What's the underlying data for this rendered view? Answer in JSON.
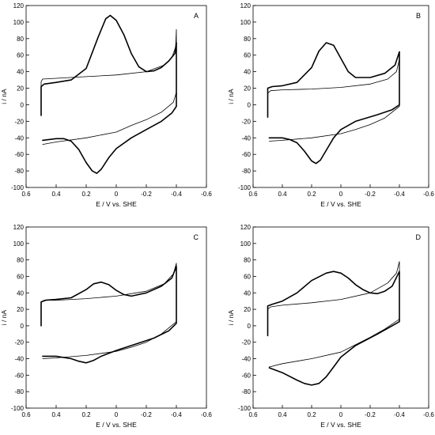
{
  "chart_data": [
    {
      "type": "line",
      "panel_label": "A",
      "xlabel": "E / V vs. SHE",
      "ylabel": "i / nA",
      "xlim": [
        0.6,
        -0.6
      ],
      "ylim": [
        -100,
        120
      ],
      "xticks": [
        "0.6",
        "0.4",
        "0.2",
        "0",
        "-0.2",
        "-0.4",
        "-0.6"
      ],
      "yticks": [
        "120",
        "100",
        "80",
        "60",
        "40",
        "20",
        "0",
        "-20",
        "-40",
        "-60",
        "-80",
        "-100"
      ],
      "series": [
        {
          "style": "thin",
          "x": [
            0.5,
            0.5,
            0.49,
            0.4,
            0.2,
            0.0,
            -0.2,
            -0.32,
            -0.37,
            -0.395,
            -0.4,
            -0.4,
            -0.4,
            -0.38,
            -0.3,
            -0.2,
            -0.1,
            0.0,
            0.2,
            0.4,
            0.49
          ],
          "y": [
            -13,
            28,
            31,
            32,
            34,
            36,
            40,
            48,
            57,
            70,
            91,
            40,
            15,
            3,
            -9,
            -18,
            -25,
            -33,
            -40,
            -45,
            -48
          ]
        },
        {
          "style": "thick",
          "x": [
            0.5,
            0.5,
            0.48,
            0.4,
            0.3,
            0.2,
            0.12,
            0.07,
            0.04,
            0.0,
            -0.05,
            -0.1,
            -0.15,
            -0.2,
            -0.25,
            -0.3,
            -0.35,
            -0.39,
            -0.4,
            -0.4,
            -0.4,
            -0.37,
            -0.3,
            -0.2,
            -0.1,
            0.0,
            0.05,
            0.1,
            0.13,
            0.16,
            0.2,
            0.25,
            0.3,
            0.35,
            0.4,
            0.49
          ],
          "y": [
            -13,
            22,
            25,
            27,
            30,
            44,
            82,
            104,
            108,
            102,
            85,
            62,
            46,
            40,
            41,
            45,
            53,
            62,
            75,
            15,
            -2,
            -10,
            -20,
            -30,
            -40,
            -53,
            -64,
            -78,
            -83,
            -80,
            -70,
            -54,
            -44,
            -41,
            -41,
            -43
          ]
        }
      ]
    },
    {
      "type": "line",
      "panel_label": "B",
      "xlabel": "E / V vs. SHE",
      "ylabel": "i / nA",
      "xlim": [
        0.6,
        -0.6
      ],
      "ylim": [
        -100,
        120
      ],
      "xticks": [
        "0.6",
        "0.4",
        "0.2",
        "0",
        "-0.2",
        "-0.4",
        "-0.6"
      ],
      "yticks": [
        "120",
        "100",
        "80",
        "60",
        "40",
        "20",
        "0",
        "-20",
        "-40",
        "-60",
        "-80",
        "-100"
      ],
      "series": [
        {
          "style": "thin",
          "x": [
            0.5,
            0.5,
            0.48,
            0.4,
            0.2,
            0.0,
            -0.2,
            -0.32,
            -0.38,
            -0.4,
            -0.4,
            -0.4,
            -0.3,
            -0.2,
            -0.1,
            0.0,
            0.2,
            0.4,
            0.49
          ],
          "y": [
            -15,
            14,
            17,
            18,
            19,
            21,
            25,
            31,
            40,
            55,
            20,
            -2,
            -16,
            -24,
            -30,
            -35,
            -40,
            -43,
            -44
          ]
        },
        {
          "style": "thick",
          "x": [
            0.5,
            0.5,
            0.47,
            0.4,
            0.3,
            0.2,
            0.15,
            0.1,
            0.05,
            0.0,
            -0.05,
            -0.1,
            -0.2,
            -0.3,
            -0.37,
            -0.4,
            -0.4,
            -0.4,
            -0.35,
            -0.25,
            -0.1,
            0.0,
            0.05,
            0.1,
            0.14,
            0.17,
            0.2,
            0.25,
            0.3,
            0.35,
            0.4,
            0.49
          ],
          "y": [
            -15,
            20,
            22,
            23,
            27,
            45,
            65,
            75,
            72,
            56,
            40,
            33,
            33,
            38,
            48,
            64,
            20,
            0,
            -6,
            -12,
            -20,
            -30,
            -40,
            -55,
            -67,
            -71,
            -68,
            -56,
            -46,
            -42,
            -40,
            -40
          ]
        }
      ]
    },
    {
      "type": "line",
      "panel_label": "C",
      "xlabel": "E / V vs. SHE",
      "ylabel": "i / nA",
      "xlim": [
        0.6,
        -0.6
      ],
      "ylim": [
        -100,
        120
      ],
      "xticks": [
        "0.6",
        "0.4",
        "0.2",
        "0",
        "-0.2",
        "-0.4",
        "-0.6"
      ],
      "yticks": [
        "120",
        "100",
        "80",
        "60",
        "40",
        "20",
        "0",
        "-20",
        "-40",
        "-60",
        "-80",
        "-100"
      ],
      "series": [
        {
          "style": "thin",
          "x": [
            0.5,
            0.5,
            0.48,
            0.4,
            0.2,
            0.0,
            -0.2,
            -0.32,
            -0.38,
            -0.4,
            -0.4,
            -0.4,
            -0.3,
            -0.2,
            -0.1,
            0.0,
            0.2,
            0.4,
            0.49
          ],
          "y": [
            0,
            29,
            31,
            31,
            33,
            36,
            42,
            51,
            63,
            76,
            30,
            5,
            -10,
            -20,
            -26,
            -31,
            -36,
            -39,
            -40
          ]
        },
        {
          "style": "thick",
          "x": [
            0.5,
            0.5,
            0.47,
            0.4,
            0.3,
            0.2,
            0.15,
            0.1,
            0.05,
            0.0,
            -0.05,
            -0.1,
            -0.2,
            -0.3,
            -0.37,
            -0.4,
            -0.4,
            -0.4,
            -0.35,
            -0.25,
            -0.1,
            0.0,
            0.1,
            0.15,
            0.2,
            0.25,
            0.3,
            0.4,
            0.49
          ],
          "y": [
            0,
            29,
            31,
            32,
            34,
            44,
            51,
            53,
            50,
            43,
            38,
            36,
            40,
            48,
            58,
            72,
            30,
            3,
            -6,
            -15,
            -24,
            -30,
            -37,
            -42,
            -45,
            -43,
            -40,
            -37,
            -37
          ]
        }
      ]
    },
    {
      "type": "line",
      "panel_label": "D",
      "xlabel": "E / V vs. SHE",
      "ylabel": "i / nA",
      "xlim": [
        0.6,
        -0.6
      ],
      "ylim": [
        -100,
        120
      ],
      "xticks": [
        "0.6",
        "0.4",
        "0.2",
        "0",
        "-0.2",
        "-0.4",
        "-0.6"
      ],
      "yticks": [
        "120",
        "100",
        "80",
        "60",
        "40",
        "20",
        "0",
        "-20",
        "-40",
        "-60",
        "-80",
        "-100"
      ],
      "series": [
        {
          "style": "thin",
          "x": [
            0.5,
            0.5,
            0.48,
            0.4,
            0.2,
            0.0,
            -0.2,
            -0.32,
            -0.38,
            -0.4,
            -0.4,
            -0.4,
            -0.3,
            -0.2,
            -0.1,
            0.0,
            0.2,
            0.4,
            0.49
          ],
          "y": [
            -12,
            20,
            23,
            25,
            28,
            32,
            40,
            52,
            64,
            78,
            30,
            8,
            -4,
            -14,
            -23,
            -32,
            -40,
            -46,
            -50
          ]
        },
        {
          "style": "thick",
          "x": [
            0.5,
            0.5,
            0.47,
            0.4,
            0.3,
            0.2,
            0.1,
            0.05,
            0.0,
            -0.05,
            -0.1,
            -0.15,
            -0.2,
            -0.25,
            -0.3,
            -0.35,
            -0.4,
            -0.4,
            -0.4,
            -0.35,
            -0.25,
            -0.1,
            0.0,
            0.05,
            0.1,
            0.15,
            0.2,
            0.25,
            0.3,
            0.4,
            0.49
          ],
          "y": [
            -12,
            24,
            26,
            30,
            40,
            55,
            64,
            66,
            64,
            58,
            50,
            44,
            40,
            39,
            42,
            48,
            66,
            30,
            5,
            0,
            -10,
            -24,
            -38,
            -50,
            -62,
            -70,
            -72,
            -70,
            -66,
            -57,
            -51
          ]
        }
      ]
    }
  ]
}
